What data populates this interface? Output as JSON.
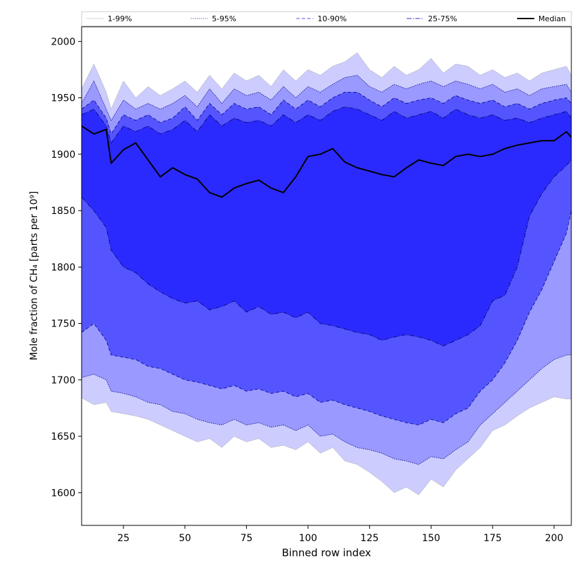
{
  "chart_data": {
    "type": "area",
    "title": "",
    "xlabel": "Binned row index",
    "ylabel": "Mole fraction of CH₄ [parts per 10⁹]",
    "xlim": [
      8,
      207
    ],
    "ylim": [
      1571,
      2013
    ],
    "xticks": [
      25,
      50,
      75,
      100,
      125,
      150,
      175,
      200
    ],
    "yticks": [
      1600,
      1650,
      1700,
      1750,
      1800,
      1850,
      1900,
      1950,
      2000
    ],
    "grid": false,
    "legend_position": "top, spanning full width",
    "x": [
      8,
      13,
      18,
      20,
      25,
      30,
      35,
      40,
      45,
      50,
      55,
      60,
      65,
      70,
      75,
      80,
      85,
      90,
      95,
      100,
      105,
      110,
      115,
      120,
      125,
      130,
      135,
      140,
      145,
      150,
      155,
      160,
      165,
      170,
      175,
      180,
      185,
      190,
      195,
      200,
      205,
      207
    ],
    "series": [
      {
        "name": "1-99%",
        "line": "thin solid",
        "band_color": "#ccccff",
        "edge_color": "#aaaaaa",
        "upper": [
          1958,
          1980,
          1955,
          1940,
          1965,
          1950,
          1960,
          1952,
          1958,
          1965,
          1955,
          1970,
          1958,
          1972,
          1965,
          1970,
          1960,
          1975,
          1965,
          1975,
          1970,
          1978,
          1982,
          1990,
          1975,
          1968,
          1978,
          1970,
          1975,
          1985,
          1972,
          1980,
          1978,
          1970,
          1975,
          1968,
          1972,
          1965,
          1972,
          1975,
          1978,
          1970
        ],
        "lower": [
          1684,
          1678,
          1680,
          1672,
          1670,
          1668,
          1665,
          1660,
          1655,
          1650,
          1645,
          1648,
          1640,
          1650,
          1645,
          1648,
          1640,
          1642,
          1638,
          1645,
          1635,
          1640,
          1628,
          1625,
          1618,
          1610,
          1600,
          1605,
          1598,
          1612,
          1605,
          1620,
          1630,
          1640,
          1655,
          1660,
          1668,
          1675,
          1680,
          1685,
          1683,
          1683
        ]
      },
      {
        "name": "5-95%",
        "line": "dotted",
        "band_color": "#9999ff",
        "edge_color": "#00007a",
        "upper": [
          1945,
          1965,
          1940,
          1930,
          1948,
          1940,
          1945,
          1940,
          1945,
          1952,
          1942,
          1958,
          1945,
          1958,
          1952,
          1955,
          1948,
          1960,
          1950,
          1960,
          1955,
          1962,
          1968,
          1970,
          1960,
          1955,
          1962,
          1958,
          1962,
          1965,
          1960,
          1965,
          1962,
          1958,
          1962,
          1955,
          1958,
          1952,
          1958,
          1960,
          1962,
          1955
        ],
        "lower": [
          1702,
          1705,
          1700,
          1690,
          1688,
          1685,
          1680,
          1678,
          1672,
          1670,
          1665,
          1662,
          1660,
          1665,
          1660,
          1662,
          1658,
          1660,
          1655,
          1660,
          1650,
          1652,
          1645,
          1640,
          1638,
          1635,
          1630,
          1628,
          1625,
          1632,
          1630,
          1638,
          1645,
          1660,
          1670,
          1680,
          1690,
          1700,
          1710,
          1718,
          1722,
          1722
        ]
      },
      {
        "name": "10-90%",
        "line": "dashed",
        "band_color": "#5555ff",
        "edge_color": "#000088",
        "upper": [
          1940,
          1948,
          1932,
          1918,
          1935,
          1930,
          1935,
          1928,
          1932,
          1942,
          1930,
          1945,
          1935,
          1945,
          1940,
          1942,
          1935,
          1948,
          1940,
          1948,
          1942,
          1950,
          1955,
          1955,
          1948,
          1942,
          1950,
          1945,
          1948,
          1950,
          1945,
          1952,
          1948,
          1945,
          1948,
          1942,
          1945,
          1940,
          1945,
          1948,
          1950,
          1945
        ],
        "lower": [
          1742,
          1750,
          1735,
          1722,
          1720,
          1718,
          1712,
          1710,
          1705,
          1700,
          1698,
          1695,
          1692,
          1695,
          1690,
          1692,
          1688,
          1690,
          1685,
          1688,
          1680,
          1682,
          1678,
          1675,
          1672,
          1668,
          1665,
          1662,
          1660,
          1665,
          1662,
          1670,
          1675,
          1690,
          1700,
          1715,
          1735,
          1760,
          1780,
          1805,
          1830,
          1850
        ]
      },
      {
        "name": "25-75%",
        "line": "dash-dot",
        "band_color": "#2a2aff",
        "edge_color": "#000066",
        "upper": [
          1935,
          1940,
          1925,
          1910,
          1925,
          1920,
          1925,
          1918,
          1922,
          1930,
          1920,
          1935,
          1925,
          1932,
          1928,
          1930,
          1925,
          1935,
          1928,
          1935,
          1930,
          1938,
          1942,
          1940,
          1935,
          1930,
          1938,
          1932,
          1935,
          1938,
          1932,
          1940,
          1935,
          1932,
          1935,
          1930,
          1932,
          1928,
          1932,
          1935,
          1938,
          1932
        ],
        "lower": [
          1862,
          1850,
          1835,
          1815,
          1800,
          1795,
          1785,
          1778,
          1772,
          1768,
          1770,
          1762,
          1765,
          1770,
          1760,
          1765,
          1758,
          1760,
          1755,
          1760,
          1750,
          1748,
          1745,
          1742,
          1740,
          1735,
          1738,
          1740,
          1738,
          1735,
          1730,
          1735,
          1740,
          1748,
          1770,
          1775,
          1800,
          1845,
          1865,
          1880,
          1890,
          1895
        ]
      },
      {
        "name": "Median",
        "line": "solid thick",
        "edge_color": "#000000",
        "values": [
          1925,
          1918,
          1922,
          1892,
          1904,
          1910,
          1895,
          1880,
          1888,
          1882,
          1878,
          1866,
          1862,
          1870,
          1874,
          1877,
          1870,
          1866,
          1880,
          1898,
          1900,
          1905,
          1893,
          1888,
          1885,
          1882,
          1880,
          1888,
          1895,
          1892,
          1890,
          1898,
          1900,
          1898,
          1900,
          1905,
          1908,
          1910,
          1912,
          1912,
          1920,
          1915
        ]
      }
    ]
  }
}
